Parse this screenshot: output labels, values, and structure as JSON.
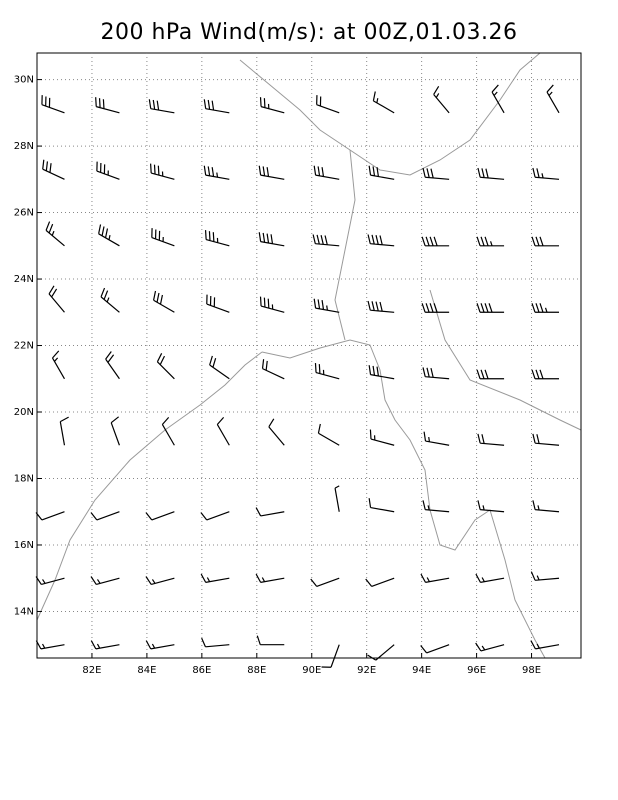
{
  "chart_data": {
    "type": "wind-barbs",
    "title": "200 hPa Wind(m/s): at 00Z,01.03.26",
    "xlim": [
      80,
      99.8
    ],
    "ylim": [
      12.6,
      30.8
    ],
    "xticks": [
      {
        "value": 82,
        "label": "82E"
      },
      {
        "value": 84,
        "label": "84E"
      },
      {
        "value": 86,
        "label": "86E"
      },
      {
        "value": 88,
        "label": "88E"
      },
      {
        "value": 90,
        "label": "90E"
      },
      {
        "value": 92,
        "label": "92E"
      },
      {
        "value": 94,
        "label": "94E"
      },
      {
        "value": 96,
        "label": "96E"
      },
      {
        "value": 98,
        "label": "98E"
      }
    ],
    "yticks": [
      {
        "value": 14,
        "label": "14N"
      },
      {
        "value": 16,
        "label": "16N"
      },
      {
        "value": 18,
        "label": "18N"
      },
      {
        "value": 20,
        "label": "20N"
      },
      {
        "value": 22,
        "label": "22N"
      },
      {
        "value": 24,
        "label": "24N"
      },
      {
        "value": 26,
        "label": "26N"
      },
      {
        "value": 28,
        "label": "28N"
      },
      {
        "value": 30,
        "label": "30N"
      }
    ],
    "grid": true,
    "color": "#000000",
    "lons": [
      81,
      83,
      85,
      87,
      89,
      91,
      93,
      95,
      97,
      99
    ],
    "lats": [
      29,
      27,
      25,
      23,
      21,
      19,
      17,
      15,
      13
    ],
    "direction": [
      [
        290,
        285,
        280,
        280,
        285,
        290,
        300,
        320,
        330,
        330
      ],
      [
        295,
        290,
        285,
        280,
        280,
        280,
        280,
        275,
        275,
        275
      ],
      [
        310,
        300,
        290,
        285,
        280,
        275,
        275,
        270,
        270,
        270
      ],
      [
        320,
        310,
        300,
        290,
        285,
        280,
        275,
        270,
        270,
        270
      ],
      [
        330,
        325,
        315,
        305,
        295,
        285,
        280,
        275,
        270,
        270
      ],
      [
        350,
        340,
        330,
        330,
        320,
        300,
        285,
        280,
        275,
        275
      ],
      [
        250,
        250,
        250,
        250,
        260,
        350,
        280,
        275,
        275,
        275
      ],
      [
        255,
        255,
        255,
        260,
        260,
        250,
        250,
        260,
        260,
        265
      ],
      [
        260,
        260,
        260,
        265,
        270,
        200,
        230,
        250,
        255,
        260
      ]
    ],
    "speed": [
      [
        30,
        30,
        30,
        30,
        25,
        20,
        15,
        15,
        15,
        15
      ],
      [
        30,
        35,
        35,
        35,
        30,
        30,
        30,
        30,
        30,
        25
      ],
      [
        25,
        35,
        35,
        35,
        40,
        40,
        40,
        40,
        35,
        30
      ],
      [
        20,
        25,
        30,
        30,
        35,
        35,
        40,
        40,
        40,
        35
      ],
      [
        15,
        20,
        20,
        20,
        20,
        25,
        30,
        30,
        30,
        30
      ],
      [
        10,
        10,
        10,
        10,
        10,
        10,
        15,
        15,
        20,
        20
      ],
      [
        10,
        10,
        10,
        10,
        10,
        5,
        10,
        15,
        15,
        15
      ],
      [
        15,
        15,
        15,
        15,
        15,
        10,
        10,
        15,
        15,
        15
      ],
      [
        15,
        15,
        15,
        10,
        10,
        10,
        10,
        10,
        15,
        15
      ]
    ]
  }
}
